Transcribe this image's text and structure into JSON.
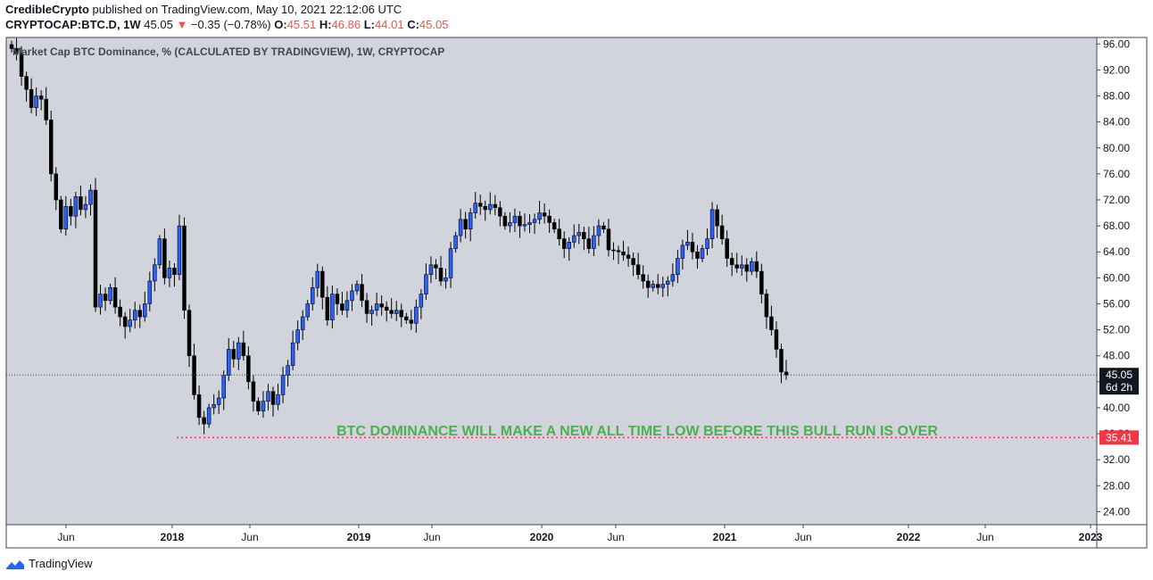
{
  "header": {
    "author": "CredibleCrypto",
    "published_text": "published on TradingView.com, May 10, 2021 22:12:06 UTC",
    "symbol": "CRYPTOCAP:BTC.D, 1W",
    "last": "45.05",
    "change_arrow": "▼",
    "change": "−0.35 (−0.78%)",
    "o_label": "O:",
    "o_value": "45.51",
    "h_label": "H:",
    "h_value": "46.86",
    "l_label": "L:",
    "l_value": "44.01",
    "c_label": "C:",
    "c_value": "45.05"
  },
  "footer": {
    "brand": "TradingView"
  },
  "chart_data": {
    "type": "candlestick",
    "title": "Market Cap BTC Dominance, % (CALCULATED BY TRADINGVIEW), 1W, CRYPTOCAP",
    "annotation": "BTC DOMINANCE WILL MAKE A NEW ALL TIME LOW BEFORE THIS BULL RUN IS OVER",
    "ylim": [
      22.0,
      97.0
    ],
    "yticks": [
      "96.00",
      "92.00",
      "88.00",
      "84.00",
      "80.00",
      "76.00",
      "72.00",
      "68.00",
      "64.00",
      "60.00",
      "56.00",
      "52.00",
      "48.00",
      "44.00",
      "40.00",
      "36.00",
      "32.00",
      "28.00",
      "24.00"
    ],
    "xticks": [
      "Jun",
      "2018",
      "Jun",
      "2019",
      "Jun",
      "2020",
      "Jun",
      "2021",
      "Jun",
      "2022",
      "Jun",
      "2023"
    ],
    "last_price_label": "45.05",
    "countdown_label": "6d 2h",
    "support_level_label": "35.41",
    "support_level": 35.41,
    "last_price": 45.05,
    "colors": {
      "up": "#2962ff",
      "down": "#000000",
      "background": "#d1d4dc",
      "annotation": "#4caf50",
      "support": "#f23645"
    },
    "closes": [
      95.3,
      94.5,
      91.0,
      89.0,
      86.2,
      88.0,
      87.5,
      84.3,
      76.0,
      72.0,
      67.5,
      71.0,
      69.5,
      72.5,
      70.5,
      71.3,
      73.5,
      55.5,
      57.5,
      56.5,
      58.5,
      55.5,
      54.0,
      52.5,
      53.5,
      55.0,
      54.0,
      56.0,
      59.5,
      62.0,
      66.0,
      60.0,
      61.5,
      60.5,
      68.0,
      55.0,
      48.0,
      42.0,
      38.5,
      37.5,
      40.0,
      40.5,
      41.5,
      45.0,
      49.0,
      47.5,
      50.0,
      48.0,
      44.0,
      41.0,
      39.5,
      41.0,
      42.5,
      40.5,
      42.0,
      45.0,
      46.5,
      50.0,
      52.0,
      54.0,
      56.0,
      58.5,
      61.0,
      57.0,
      53.5,
      57.5,
      56.0,
      55.0,
      56.5,
      58.0,
      59.0,
      56.5,
      54.5,
      55.0,
      56.0,
      55.5,
      55.0,
      54.5,
      55.0,
      54.0,
      53.5,
      53.0,
      55.5,
      57.5,
      60.5,
      62.0,
      61.5,
      59.5,
      60.0,
      64.5,
      66.5,
      69.0,
      67.5,
      70.0,
      71.5,
      71.0,
      70.5,
      71.3,
      70.8,
      69.5,
      68.0,
      68.5,
      69.5,
      68.0,
      68.2,
      68.5,
      69.0,
      70.0,
      69.5,
      68.5,
      67.5,
      66.0,
      64.5,
      65.5,
      66.5,
      67.0,
      66.0,
      64.5,
      66.5,
      68.0,
      67.5,
      64.3,
      64.2,
      64.0,
      63.5,
      63.0,
      62.0,
      60.5,
      59.5,
      58.5,
      59.0,
      58.5,
      59.0,
      59.5,
      60.5,
      63.0,
      65.0,
      65.5,
      64.0,
      63.0,
      64.5,
      66.0,
      70.5,
      68.0,
      66.0,
      63.0,
      62.0,
      61.5,
      62.0,
      61.0,
      62.5,
      61.0,
      57.5,
      54.0,
      52.0,
      49.0,
      45.5,
      45.05
    ]
  }
}
